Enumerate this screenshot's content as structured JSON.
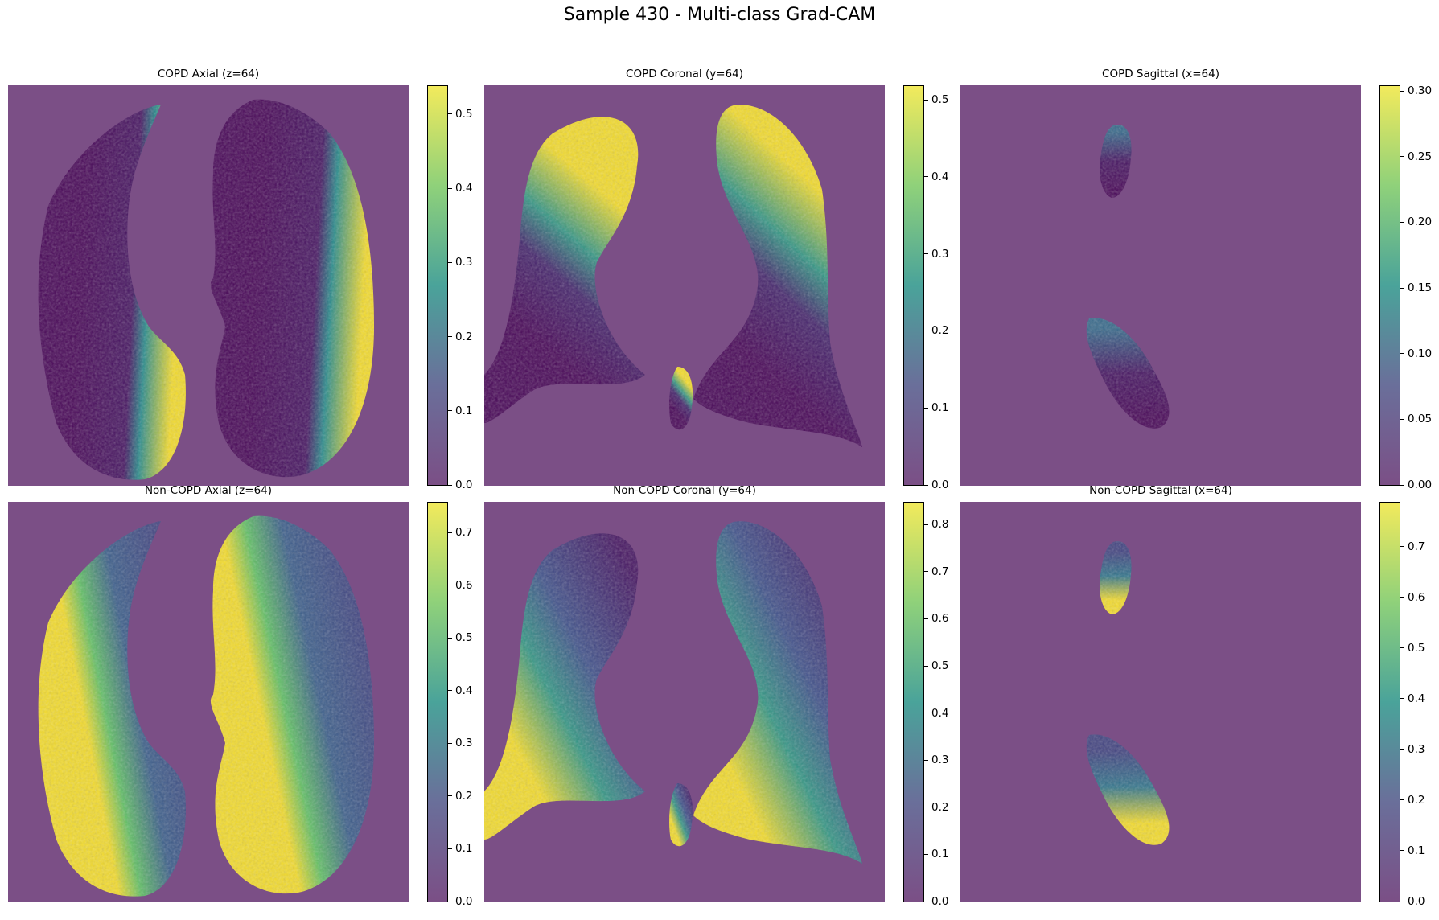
{
  "title": "Sample 430 - Multi-class Grad-CAM",
  "colormap": [
    "#440154",
    "#3b528b",
    "#21918c",
    "#5ec962",
    "#fde725"
  ],
  "background_color": "#7b4f86",
  "panels": [
    {
      "title": "COPD Axial (z=64)",
      "view": "axial",
      "colorbar": {
        "vmin": 0.0,
        "vmax": 0.54,
        "ticks": [
          "0.0",
          "0.1",
          "0.2",
          "0.3",
          "0.4",
          "0.5"
        ]
      }
    },
    {
      "title": "COPD Coronal (y=64)",
      "view": "coronal",
      "colorbar": {
        "vmin": 0.0,
        "vmax": 0.52,
        "ticks": [
          "0.0",
          "0.1",
          "0.2",
          "0.3",
          "0.4",
          "0.5"
        ]
      }
    },
    {
      "title": "COPD Sagittal (x=64)",
      "view": "sagittal",
      "colorbar": {
        "vmin": 0.0,
        "vmax": 0.305,
        "ticks": [
          "0.00",
          "0.05",
          "0.10",
          "0.15",
          "0.20",
          "0.25",
          "0.30"
        ]
      }
    },
    {
      "title": "Non-COPD Axial (z=64)",
      "view": "axial",
      "colorbar": {
        "vmin": 0.0,
        "vmax": 0.76,
        "ticks": [
          "0.0",
          "0.1",
          "0.2",
          "0.3",
          "0.4",
          "0.5",
          "0.6",
          "0.7"
        ]
      }
    },
    {
      "title": "Non-COPD Coronal (y=64)",
      "view": "coronal",
      "colorbar": {
        "vmin": 0.0,
        "vmax": 0.85,
        "ticks": [
          "0.0",
          "0.1",
          "0.2",
          "0.3",
          "0.4",
          "0.5",
          "0.6",
          "0.7",
          "0.8"
        ]
      }
    },
    {
      "title": "Non-COPD Sagittal (x=64)",
      "view": "sagittal",
      "colorbar": {
        "vmin": 0.0,
        "vmax": 0.79,
        "ticks": [
          "0.0",
          "0.1",
          "0.2",
          "0.3",
          "0.4",
          "0.5",
          "0.6",
          "0.7"
        ]
      }
    }
  ]
}
